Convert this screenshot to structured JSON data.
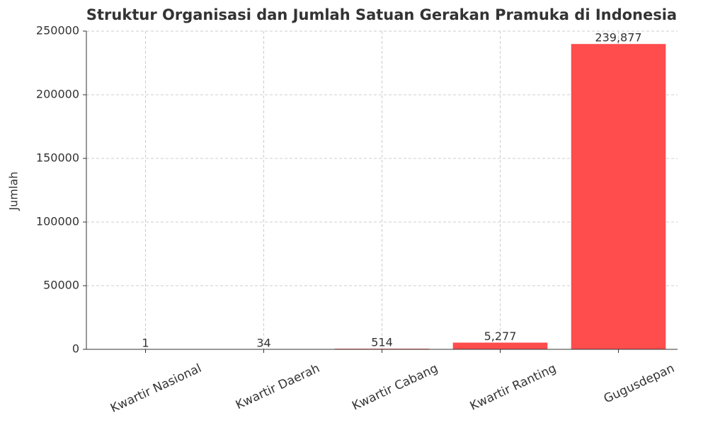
{
  "chart_data": {
    "type": "bar",
    "title": "Struktur Organisasi dan Jumlah Satuan Gerakan Pramuka di Indonesia",
    "y_label": "Jumlah",
    "categories": [
      "Kwartir Nasional",
      "Kwartir Daerah",
      "Kwartir Cabang",
      "Kwartir Ranting",
      "Gugusdepan"
    ],
    "values": [
      1,
      34,
      514,
      5277,
      239877
    ],
    "value_labels": [
      "1",
      "34",
      "514",
      "5,277",
      "239,877"
    ],
    "color": "#ff4c4c",
    "ylim": [
      0,
      250000
    ],
    "yticks": [
      0,
      50000,
      100000,
      150000,
      200000,
      250000
    ],
    "grid": true
  }
}
